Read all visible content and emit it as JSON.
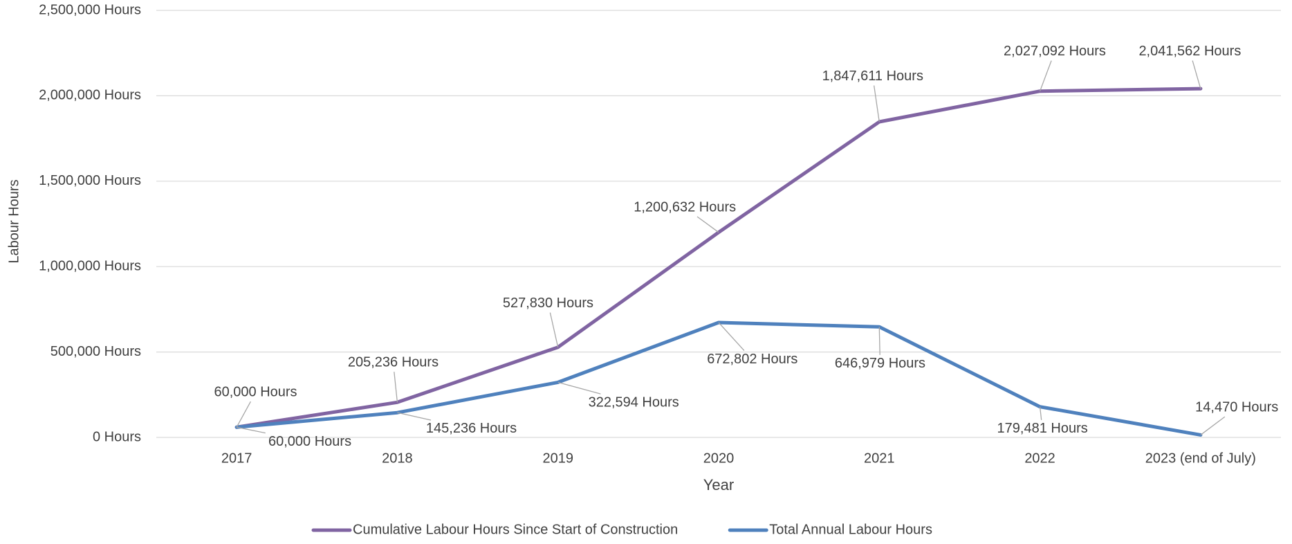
{
  "chart_data": {
    "type": "line",
    "x_label": "Year",
    "y_label": "Labour Hours",
    "categories": [
      "2017",
      "2018",
      "2019",
      "2020",
      "2021",
      "2022",
      "2023 (end of July)"
    ],
    "series": [
      {
        "name": "Cumulative Labour Hours Since Start of Construction",
        "color": "#8064a2",
        "values": [
          60000,
          205236,
          527830,
          1200632,
          1847611,
          2027092,
          2041562
        ],
        "value_labels": [
          "60,000 Hours",
          "205,236 Hours",
          "527,830 Hours",
          "1,200,632 Hours",
          "1,847,611 Hours",
          "2,027,092 Hours",
          "2,041,562 Hours"
        ]
      },
      {
        "name": "Total Annual Labour Hours",
        "color": "#4f81bd",
        "values": [
          60000,
          145236,
          322594,
          672802,
          646979,
          179481,
          14470
        ],
        "value_labels": [
          "60,000 Hours",
          "145,236 Hours",
          "322,594 Hours",
          "672,802 Hours",
          "646,979 Hours",
          "179,481 Hours",
          "14,470 Hours"
        ]
      }
    ],
    "ylim": [
      0,
      2500000
    ],
    "yticks": [
      {
        "value": 0,
        "label": "0 Hours"
      },
      {
        "value": 500000,
        "label": "500,000 Hours"
      },
      {
        "value": 1000000,
        "label": "1,000,000 Hours"
      },
      {
        "value": 1500000,
        "label": "1,500,000 Hours"
      },
      {
        "value": 2000000,
        "label": "2,000,000 Hours"
      },
      {
        "value": 2500000,
        "label": "2,500,000 Hours"
      }
    ],
    "grid": true,
    "legend": "bottom"
  }
}
